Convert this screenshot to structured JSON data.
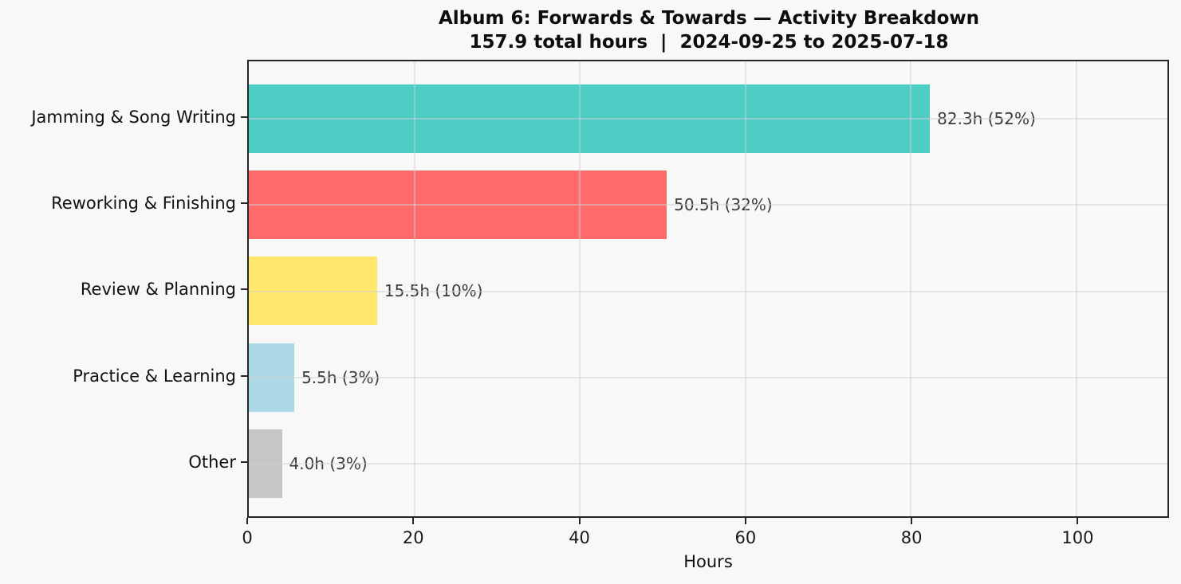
{
  "header": {
    "title": "Album 6: Forwards & Towards — Activity Breakdown",
    "subtitle": "157.9 total hours  |  2024-09-25 to 2025-07-18"
  },
  "chart_data": {
    "type": "bar",
    "orientation": "horizontal",
    "title": "Album 6: Forwards & Towards — Activity Breakdown",
    "subtitle": "157.9 total hours  |  2024-09-25 to 2025-07-18",
    "total_hours": 157.9,
    "date_range": "2024-09-25 to 2025-07-18",
    "categories": [
      "Jamming & Song Writing",
      "Reworking & Finishing",
      "Review & Planning",
      "Practice & Learning",
      "Other"
    ],
    "values": [
      82.3,
      50.5,
      15.5,
      5.5,
      4.0
    ],
    "percents": [
      52,
      32,
      10,
      3,
      3
    ],
    "bar_labels": [
      "82.3h (52%)",
      "50.5h (32%)",
      "15.5h (10%)",
      "5.5h (3%)",
      "4.0h (3%)"
    ],
    "colors": [
      "#4ecdc4",
      "#ff6b6b",
      "#ffe66d",
      "#add8e6",
      "#c6c6c6"
    ],
    "xlabel": "Hours",
    "ylabel": "",
    "xticks": [
      0,
      20,
      40,
      60,
      80,
      100
    ],
    "xlim": [
      0,
      111
    ],
    "grid": true,
    "legend_position": "none",
    "background": "#f8f8f8",
    "frame_color": "#262626"
  }
}
